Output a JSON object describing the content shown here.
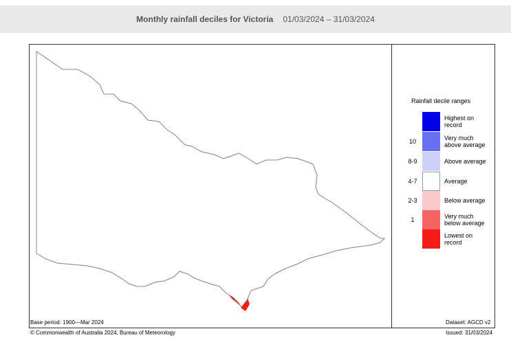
{
  "header": {
    "title": "Monthly rainfall deciles for Victoria",
    "period": "01/03/2024 – 31/03/2024"
  },
  "legend": {
    "title": "Rainfall decile ranges",
    "items": [
      {
        "decile": "",
        "label_line1": "Highest on",
        "label_line2": "record",
        "color": "#0000e6"
      },
      {
        "decile": "10",
        "label_line1": "Very much",
        "label_line2": "above average",
        "color": "#6a6ef0"
      },
      {
        "decile": "8-9",
        "label_line1": "Above average",
        "label_line2": "",
        "color": "#cfd0f5"
      },
      {
        "decile": "4-7",
        "label_line1": "Average",
        "label_line2": "",
        "color": "#ffffff"
      },
      {
        "decile": "2-3",
        "label_line1": "Below average",
        "label_line2": "",
        "color": "#f9c9cb"
      },
      {
        "decile": "1",
        "label_line1": "Very much",
        "label_line2": "below average",
        "color": "#f46464"
      },
      {
        "decile": "",
        "label_line1": "Lowest on",
        "label_line2": "record",
        "color": "#f41b1b"
      }
    ]
  },
  "footer": {
    "base_period": "Base period: 1900—Mar 2024",
    "dataset": "Dataset: AGCD v2",
    "copyright": "© Commonwealth of Australia 2024, Bureau of Meteorology",
    "issued": "Issued: 31/03/2024"
  },
  "map": {
    "region": "Victoria",
    "colors": {
      "outline": "#888888",
      "average": "#ffffff",
      "below_average": "#f9c9cb",
      "very_much_below_average": "#f46464",
      "lowest_on_record": "#f41b1b"
    }
  }
}
